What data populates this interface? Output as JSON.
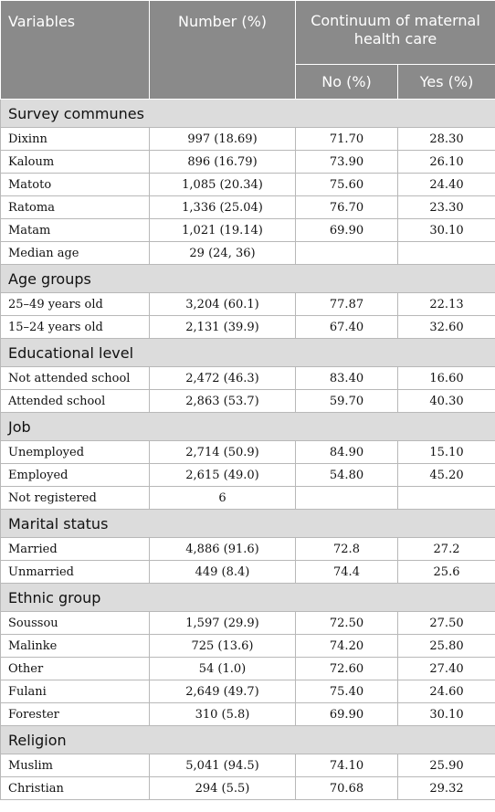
{
  "header": {
    "variables": "Variables",
    "number": "Number (%)",
    "continuum": "Continuum of maternal health care",
    "no": "No (%)",
    "yes": "Yes (%)"
  },
  "sections": [
    {
      "title": "Survey communes",
      "rows": [
        {
          "label": "Dixinn",
          "number": "997 (18.69)",
          "no": "71.70",
          "yes": "28.30"
        },
        {
          "label": "Kaloum",
          "number": "896 (16.79)",
          "no": "73.90",
          "yes": "26.10"
        },
        {
          "label": "Matoto",
          "number": "1,085 (20.34)",
          "no": "75.60",
          "yes": "24.40"
        },
        {
          "label": "Ratoma",
          "number": "1,336 (25.04)",
          "no": "76.70",
          "yes": "23.30"
        },
        {
          "label": "Matam",
          "number": "1,021 (19.14)",
          "no": "69.90",
          "yes": "30.10"
        },
        {
          "label": "Median age",
          "number": "29 (24, 36)",
          "no": "",
          "yes": ""
        }
      ]
    },
    {
      "title": "Age groups",
      "rows": [
        {
          "label": "25–49 years old",
          "number": "3,204 (60.1)",
          "no": "77.87",
          "yes": "22.13"
        },
        {
          "label": "15–24 years old",
          "number": "2,131 (39.9)",
          "no": "67.40",
          "yes": "32.60"
        }
      ]
    },
    {
      "title": "Educational level",
      "rows": [
        {
          "label": "Not attended school",
          "number": "2,472 (46.3)",
          "no": "83.40",
          "yes": "16.60"
        },
        {
          "label": "Attended school",
          "number": "2,863 (53.7)",
          "no": "59.70",
          "yes": "40.30"
        }
      ]
    },
    {
      "title": "Job",
      "rows": [
        {
          "label": "Unemployed",
          "number": "2,714 (50.9)",
          "no": "84.90",
          "yes": "15.10"
        },
        {
          "label": "Employed",
          "number": "2,615 (49.0)",
          "no": "54.80",
          "yes": "45.20"
        },
        {
          "label": "Not registered",
          "number": "6",
          "no": "",
          "yes": ""
        }
      ]
    },
    {
      "title": "Marital status",
      "rows": [
        {
          "label": "Married",
          "number": "4,886 (91.6)",
          "no": "72.8",
          "yes": "27.2"
        },
        {
          "label": "Unmarried",
          "number": "449 (8.4)",
          "no": "74.4",
          "yes": "25.6"
        }
      ]
    },
    {
      "title": "Ethnic group",
      "rows": [
        {
          "label": "Soussou",
          "number": "1,597 (29.9)",
          "no": "72.50",
          "yes": "27.50"
        },
        {
          "label": "Malinke",
          "number": "725 (13.6)",
          "no": "74.20",
          "yes": "25.80"
        },
        {
          "label": "Other",
          "number": "54 (1.0)",
          "no": "72.60",
          "yes": "27.40"
        },
        {
          "label": "Fulani",
          "number": "2,649 (49.7)",
          "no": "75.40",
          "yes": "24.60"
        },
        {
          "label": "Forester",
          "number": "310 (5.8)",
          "no": "69.90",
          "yes": "30.10"
        }
      ]
    },
    {
      "title": "Religion",
      "rows": [
        {
          "label": "Muslim",
          "number": "5,041 (94.5)",
          "no": "74.10",
          "yes": "25.90"
        },
        {
          "label": "Christian",
          "number": "294 (5.5)",
          "no": "70.68",
          "yes": "29.32"
        }
      ]
    }
  ]
}
